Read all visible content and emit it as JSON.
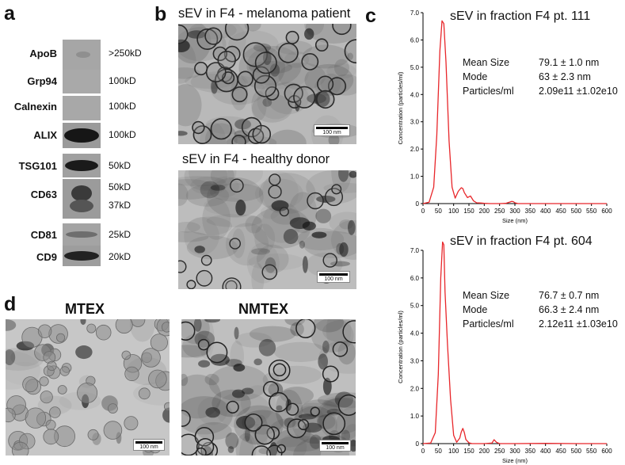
{
  "panels": {
    "a": {
      "letter": "a",
      "rows": [
        {
          "label": "ApoB",
          "kd": ">250kD"
        },
        {
          "label": "Grp94",
          "kd": "100kD"
        },
        {
          "label": "Calnexin",
          "kd": "100kD"
        },
        {
          "label": "ALIX",
          "kd": "100kD"
        },
        {
          "label": "TSG101",
          "kd": "50kD"
        },
        {
          "label": "CD63",
          "kd": "50kD",
          "kd2": "37kD"
        },
        {
          "label": "CD81",
          "kd": "25kD"
        },
        {
          "label": "CD9",
          "kd": "20kD"
        }
      ]
    },
    "b": {
      "letter": "b",
      "title_top": "sEV in F4 - melanoma patient",
      "title_bottom": "sEV in F4 - healthy donor",
      "scale_top": "100 nm",
      "scale_bottom": "100 nm"
    },
    "c": {
      "letter": "c",
      "top": {
        "title": "sEV in fraction F4 pt. 111",
        "mean_label": "Mean Size",
        "mean_value": "79.1 ± 1.0 nm",
        "mode_label": "Mode",
        "mode_value": "63 ± 2.3 nm",
        "conc_label": "Particles/ml",
        "conc_value": "2.09e11 ±1.02e10"
      },
      "bottom": {
        "title": "sEV in fraction F4 pt. 604",
        "mean_label": "Mean Size",
        "mean_value": "76.7 ± 0.7 nm",
        "mode_label": "Mode",
        "mode_value": "66.3 ± 2.4 nm",
        "conc_label": "Particles/ml",
        "conc_value": "2.12e11 ±1.03e10"
      }
    },
    "d": {
      "letter": "d",
      "title_left": "MTEX",
      "title_right": "NMTEX",
      "scale_left": "100 nm",
      "scale_right": "100 nm"
    }
  },
  "chart_data": [
    {
      "type": "line",
      "title": "sEV in fraction F4 pt. 111",
      "xlabel": "Size (nm)",
      "ylabel": "Concentration (particles/ml)",
      "xlim": [
        0,
        600
      ],
      "ylim": [
        0,
        7.0
      ],
      "xticks": [
        "0",
        "50",
        "100",
        "150",
        "200",
        "250",
        "300",
        "350",
        "400",
        "450",
        "500",
        "550",
        "600"
      ],
      "yticks": [
        "0",
        "1.0",
        "2.0",
        "3.0",
        "4.0",
        "5.0",
        "6.0",
        "7.0"
      ],
      "color": "#e8262a",
      "x": [
        0,
        20,
        35,
        45,
        55,
        62,
        68,
        75,
        85,
        95,
        105,
        115,
        125,
        130,
        135,
        145,
        155,
        165,
        175,
        190,
        200,
        220,
        250,
        270,
        285,
        290,
        295,
        300,
        310,
        330,
        400,
        500,
        600
      ],
      "y": [
        0,
        0.05,
        0.6,
        2.5,
        5.6,
        6.7,
        6.6,
        5.2,
        2.3,
        0.6,
        0.2,
        0.45,
        0.58,
        0.55,
        0.4,
        0.22,
        0.28,
        0.1,
        0.03,
        0.02,
        0.01,
        0,
        0,
        0.01,
        0.06,
        0.08,
        0.07,
        0.03,
        0,
        0,
        0,
        0,
        0
      ]
    },
    {
      "type": "line",
      "title": "sEV in fraction F4 pt. 604",
      "xlabel": "Size (nm)",
      "ylabel": "Concentration (particles/ml)",
      "xlim": [
        0,
        600
      ],
      "ylim": [
        0,
        7.0
      ],
      "xticks": [
        "0",
        "50",
        "100",
        "150",
        "200",
        "250",
        "300",
        "350",
        "400",
        "450",
        "500",
        "550",
        "600"
      ],
      "yticks": [
        "0",
        "1.0",
        "2.0",
        "3.0",
        "4.0",
        "5.0",
        "6.0",
        "7.0"
      ],
      "color": "#e8262a",
      "x": [
        0,
        25,
        40,
        50,
        58,
        64,
        68,
        72,
        80,
        90,
        100,
        110,
        120,
        125,
        130,
        135,
        140,
        150,
        160,
        200,
        225,
        232,
        240,
        250,
        300,
        400,
        500,
        600
      ],
      "y": [
        0,
        0.02,
        0.4,
        2.5,
        6.0,
        7.3,
        7.2,
        5.5,
        3.6,
        1.6,
        0.3,
        0.05,
        0.2,
        0.42,
        0.55,
        0.4,
        0.15,
        0.03,
        0,
        0,
        0.02,
        0.14,
        0.05,
        0,
        0,
        0.01,
        0,
        0
      ]
    }
  ]
}
